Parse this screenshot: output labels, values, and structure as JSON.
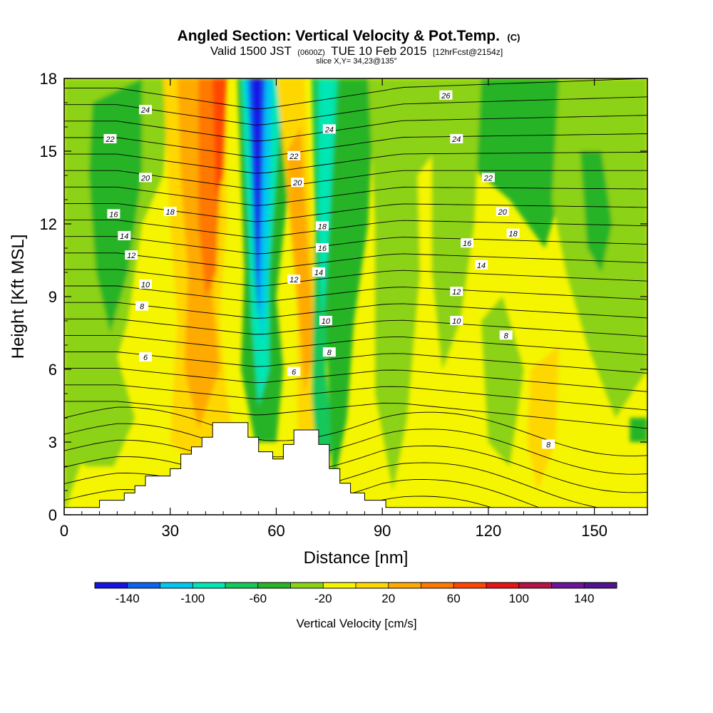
{
  "title": {
    "main": "Angled Section: Vertical Velocity & Pot.Temp.",
    "main_suffix": "(C)",
    "valid_prefix": "Valid 1500 JST",
    "valid_utc": "(0600Z)",
    "valid_date": "TUE 10 Feb 2015",
    "valid_fcst": "[12hrFcst@2154z]",
    "slice": "slice X,Y= 34,23@135°"
  },
  "chart_data": {
    "type": "heatmap",
    "xlabel": "Distance [nm]",
    "ylabel": "Height [Kft MSL]",
    "xlim": [
      0,
      165
    ],
    "ylim": [
      0,
      18
    ],
    "x_ticks": [
      0,
      30,
      60,
      90,
      120,
      150
    ],
    "y_ticks": [
      0,
      3,
      6,
      9,
      12,
      15,
      18
    ],
    "fill_field": "Vertical Velocity",
    "contour_field": "Potential Temperature",
    "colorbar": {
      "label": "Vertical Velocity [cm/s]",
      "ticks": [
        -140,
        -100,
        -60,
        -20,
        20,
        60,
        100,
        140
      ],
      "levels": [
        -160,
        -140,
        -120,
        -100,
        -80,
        -60,
        -40,
        -20,
        0,
        20,
        40,
        60,
        80,
        100,
        120,
        140,
        160
      ],
      "colors": [
        "#1414e6",
        "#0a64f0",
        "#00c8f0",
        "#00e6b4",
        "#14c85a",
        "#28b428",
        "#8cd214",
        "#f5f500",
        "#ffd700",
        "#ffaa00",
        "#ff7800",
        "#ff4600",
        "#e61414",
        "#b41446",
        "#6e1496",
        "#50148c"
      ]
    },
    "terrain_profile": [
      [
        0,
        0.3
      ],
      [
        10,
        0.3
      ],
      [
        10,
        0.6
      ],
      [
        17,
        0.6
      ],
      [
        17,
        0.9
      ],
      [
        20,
        0.9
      ],
      [
        20,
        1.2
      ],
      [
        23,
        1.2
      ],
      [
        23,
        1.6
      ],
      [
        30,
        1.6
      ],
      [
        30,
        1.9
      ],
      [
        33,
        1.9
      ],
      [
        33,
        2.5
      ],
      [
        36,
        2.5
      ],
      [
        36,
        2.8
      ],
      [
        39,
        2.8
      ],
      [
        39,
        3.2
      ],
      [
        42,
        3.2
      ],
      [
        42,
        3.8
      ],
      [
        52,
        3.8
      ],
      [
        52,
        3.2
      ],
      [
        55,
        3.2
      ],
      [
        55,
        2.6
      ],
      [
        59,
        2.6
      ],
      [
        59,
        2.3
      ],
      [
        62,
        2.3
      ],
      [
        62,
        2.9
      ],
      [
        65,
        2.9
      ],
      [
        65,
        3.5
      ],
      [
        72,
        3.5
      ],
      [
        72,
        2.9
      ],
      [
        75,
        2.9
      ],
      [
        75,
        1.9
      ],
      [
        78,
        1.9
      ],
      [
        78,
        1.3
      ],
      [
        81,
        1.3
      ],
      [
        81,
        0.9
      ],
      [
        85,
        0.9
      ],
      [
        85,
        0.6
      ],
      [
        91,
        0.6
      ],
      [
        91,
        0.3
      ],
      [
        165,
        0.3
      ]
    ],
    "contour_labels": [
      {
        "text": "24",
        "x": 23,
        "y": 16.7
      },
      {
        "text": "22",
        "x": 13,
        "y": 15.5
      },
      {
        "text": "20",
        "x": 23,
        "y": 13.9
      },
      {
        "text": "18",
        "x": 30,
        "y": 12.5
      },
      {
        "text": "16",
        "x": 14,
        "y": 12.4
      },
      {
        "text": "14",
        "x": 17,
        "y": 11.5
      },
      {
        "text": "12",
        "x": 19,
        "y": 10.7
      },
      {
        "text": "10",
        "x": 23,
        "y": 9.5
      },
      {
        "text": "8",
        "x": 22,
        "y": 8.6
      },
      {
        "text": "6",
        "x": 23,
        "y": 6.5
      },
      {
        "text": "24",
        "x": 75,
        "y": 15.9
      },
      {
        "text": "22",
        "x": 65,
        "y": 14.8
      },
      {
        "text": "20",
        "x": 66,
        "y": 13.7
      },
      {
        "text": "18",
        "x": 73,
        "y": 11.9
      },
      {
        "text": "16",
        "x": 73,
        "y": 11.0
      },
      {
        "text": "14",
        "x": 72,
        "y": 10.0
      },
      {
        "text": "12",
        "x": 65,
        "y": 9.7
      },
      {
        "text": "10",
        "x": 74,
        "y": 8.0
      },
      {
        "text": "8",
        "x": 75,
        "y": 6.7
      },
      {
        "text": "6",
        "x": 65,
        "y": 5.9
      },
      {
        "text": "26",
        "x": 108,
        "y": 17.3
      },
      {
        "text": "24",
        "x": 111,
        "y": 15.5
      },
      {
        "text": "22",
        "x": 120,
        "y": 13.9
      },
      {
        "text": "20",
        "x": 124,
        "y": 12.5
      },
      {
        "text": "18",
        "x": 127,
        "y": 11.6
      },
      {
        "text": "16",
        "x": 114,
        "y": 11.2
      },
      {
        "text": "14",
        "x": 118,
        "y": 10.3
      },
      {
        "text": "12",
        "x": 111,
        "y": 9.2
      },
      {
        "text": "10",
        "x": 111,
        "y": 8.0
      },
      {
        "text": "8",
        "x": 125,
        "y": 7.4
      },
      {
        "text": "8",
        "x": 137,
        "y": 2.9
      }
    ]
  }
}
